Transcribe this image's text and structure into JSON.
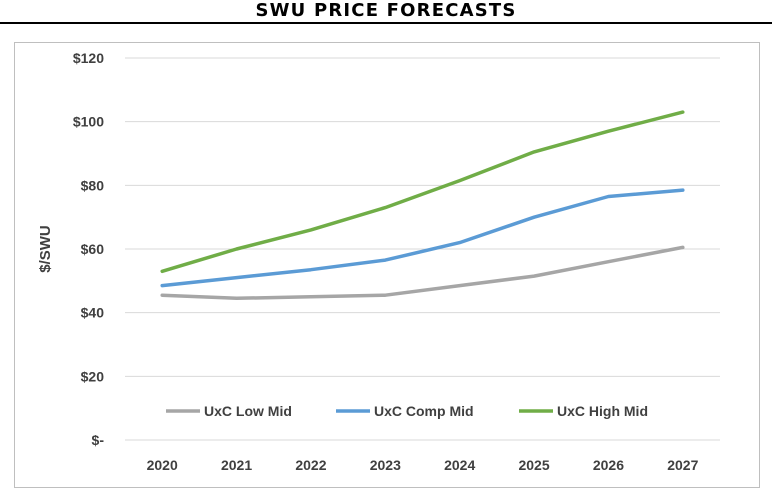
{
  "chart_data": {
    "type": "line",
    "title": "SWU PRICE FORECASTS",
    "ylabel": "$/SWU",
    "xlabel": "",
    "x": [
      "2020",
      "2021",
      "2022",
      "2023",
      "2024",
      "2025",
      "2026",
      "2027"
    ],
    "ylim": [
      0,
      120
    ],
    "y_ticks": [
      {
        "value": 0,
        "label": "$-"
      },
      {
        "value": 20,
        "label": "$20"
      },
      {
        "value": 40,
        "label": "$40"
      },
      {
        "value": 60,
        "label": "$60"
      },
      {
        "value": 80,
        "label": "$80"
      },
      {
        "value": 100,
        "label": "$100"
      },
      {
        "value": 120,
        "label": "$120"
      }
    ],
    "grid": true,
    "legend_position": "inside-bottom",
    "series": [
      {
        "name": "UxC Low Mid",
        "color": "#a6a6a6",
        "values": [
          45.5,
          44.5,
          45,
          45.5,
          48.5,
          51.5,
          56,
          60.5
        ]
      },
      {
        "name": "UxC Comp Mid",
        "color": "#5b9bd5",
        "values": [
          48.5,
          51,
          53.5,
          56.5,
          62,
          70,
          76.5,
          78.5
        ]
      },
      {
        "name": "UxC High Mid",
        "color": "#70ad47",
        "values": [
          53,
          60,
          66,
          73,
          81.5,
          90.5,
          97,
          103
        ]
      }
    ]
  }
}
